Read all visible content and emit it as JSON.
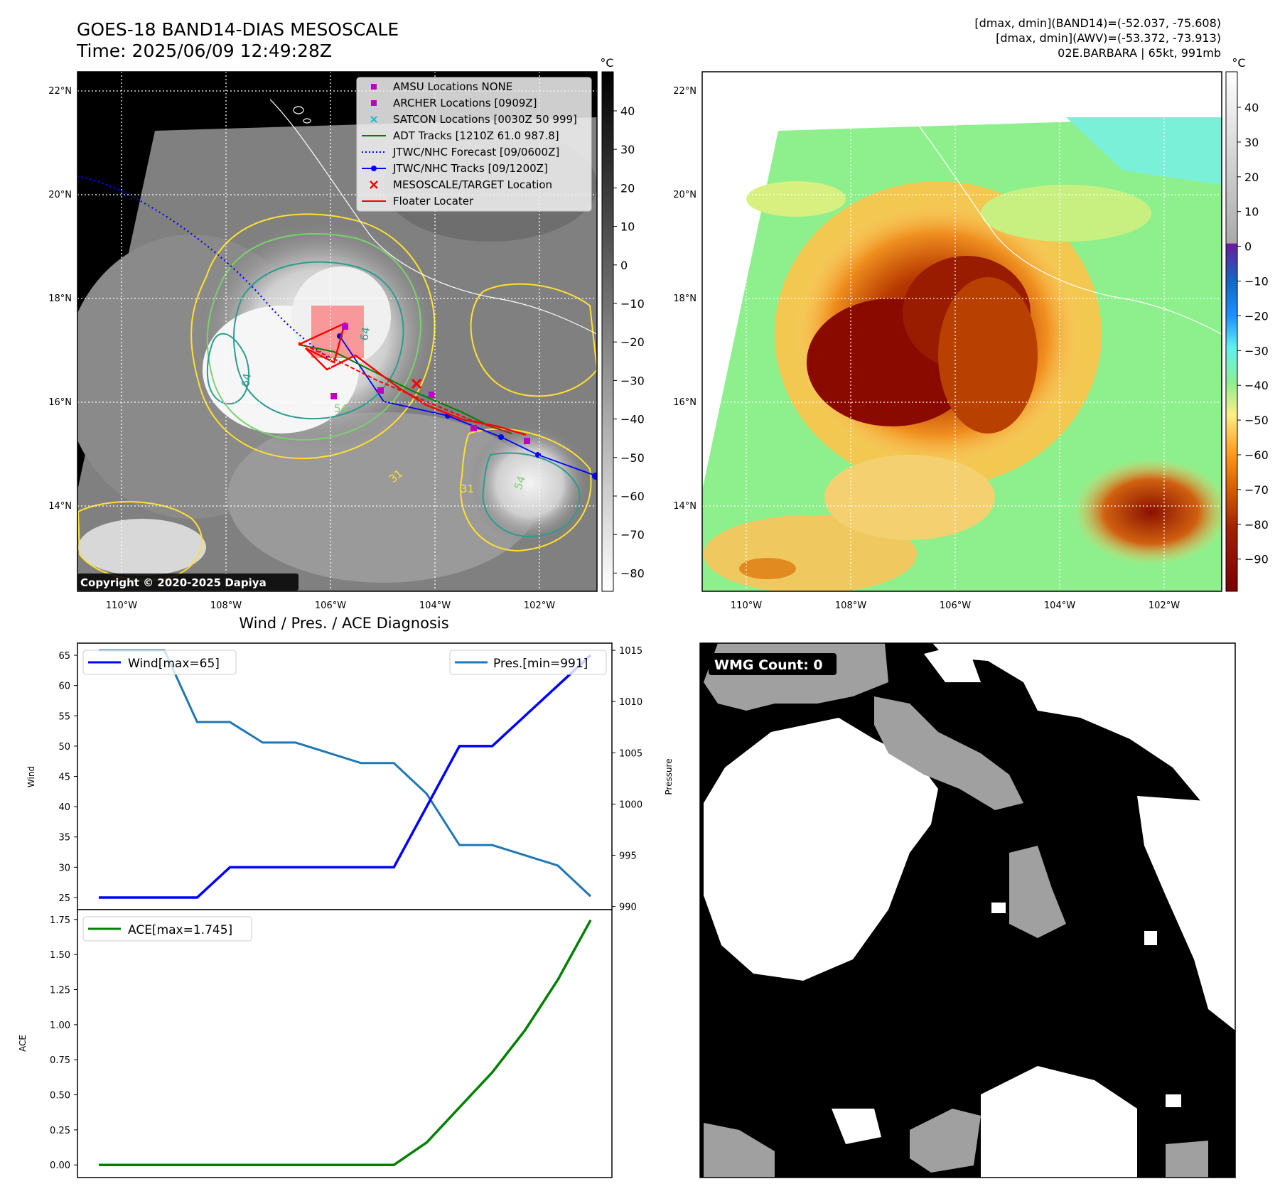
{
  "header": {
    "title_line1": "GOES-18 BAND14-DIAS MESOSCALE",
    "title_line2": "Time: 2025/06/09 12:49:28Z",
    "info_line1": "[dmax, dmin](BAND14)=(-52.037, -75.608)",
    "info_line2": "[dmax, dmin](AWV)=(-53.372, -73.913)",
    "info_line3": "02E.BARBARA | 65kt, 991mb"
  },
  "map": {
    "lon_ticks": [
      "110°W",
      "108°W",
      "106°W",
      "104°W",
      "102°W"
    ],
    "lat_ticks": [
      "22°N",
      "20°N",
      "18°N",
      "16°N",
      "14°N"
    ],
    "copyright": "Copyright © 2020-2025 Dapiya",
    "contour_labels": [
      "64",
      "64",
      "54",
      "54",
      "31",
      "31"
    ],
    "legend": [
      {
        "label": "AMSU Locations NONE",
        "color": "#bf00bf",
        "marker": "square"
      },
      {
        "label": "ARCHER Locations [0909Z]",
        "color": "#bf00bf",
        "marker": "square"
      },
      {
        "label": "SATCON Locations [0030Z 50 999]",
        "color": "#17becf",
        "marker": "x"
      },
      {
        "label": "ADT Tracks [1210Z 61.0 987.8]",
        "color": "#008000",
        "marker": "line"
      },
      {
        "label": "JTWC/NHC Forecast [09/0600Z]",
        "color": "#0000ff",
        "marker": "dotted"
      },
      {
        "label": "JTWC/NHC Tracks [09/1200Z]",
        "color": "#0000ff",
        "marker": "line-dot"
      },
      {
        "label": "MESOSCALE/TARGET Location",
        "color": "#ff0000",
        "marker": "x"
      },
      {
        "label": "Floater Locater",
        "color": "#ff0000",
        "marker": "line"
      }
    ],
    "colorbar_left": {
      "unit": "°C",
      "ticks": [
        "40",
        "30",
        "20",
        "10",
        "0",
        "−10",
        "−20",
        "−30",
        "−40",
        "−50",
        "−60",
        "−70",
        "−80"
      ]
    },
    "colorbar_right": {
      "unit": "°C",
      "ticks": [
        "40",
        "30",
        "20",
        "10",
        "0",
        "−10",
        "−20",
        "−30",
        "−40",
        "−50",
        "−60",
        "−70",
        "−80",
        "−90"
      ]
    }
  },
  "wmg": {
    "label": "WMG Count: 0"
  },
  "chart_data": [
    {
      "type": "line",
      "title": "Wind / Pres. / ACE Diagnosis",
      "x": [
        0,
        1,
        2,
        3,
        4,
        5,
        6,
        7,
        8,
        9,
        10,
        11,
        12,
        13,
        14,
        15
      ],
      "ylabel": "Wind",
      "y2label": "Pressure",
      "ylim": [
        23.0,
        67.0
      ],
      "y2lim": [
        989.7,
        1015.7
      ],
      "yticks": [
        "65",
        "60",
        "55",
        "50",
        "45",
        "40",
        "35",
        "30",
        "25"
      ],
      "y2ticks": [
        "1015",
        "1010",
        "1005",
        "1000",
        "995",
        "990"
      ],
      "series": [
        {
          "name": "Wind[max=65]",
          "color": "#0000ff",
          "axis": "left",
          "values": [
            25,
            25,
            25,
            25,
            30,
            30,
            30,
            30,
            30,
            30,
            40,
            50,
            50,
            55,
            60,
            65
          ]
        },
        {
          "name": "Pres.[min=991]",
          "color": "#1f77b4",
          "axis": "right",
          "values": [
            1015,
            1015,
            1015,
            1008,
            1008,
            1006,
            1006,
            1005,
            1004,
            1004,
            1001,
            996,
            996,
            995,
            994,
            991
          ]
        }
      ]
    },
    {
      "type": "line",
      "ylabel": "ACE",
      "ylim": [
        -0.09,
        1.82
      ],
      "yticks": [
        "1.75",
        "1.50",
        "1.25",
        "1.00",
        "0.75",
        "0.50",
        "0.25",
        "0.00"
      ],
      "series": [
        {
          "name": "ACE[max=1.745]",
          "color": "#008000",
          "values": [
            0,
            0,
            0,
            0,
            0,
            0,
            0,
            0,
            0,
            0,
            0.16,
            0.41,
            0.66,
            0.96,
            1.32,
            1.745
          ]
        }
      ]
    }
  ]
}
